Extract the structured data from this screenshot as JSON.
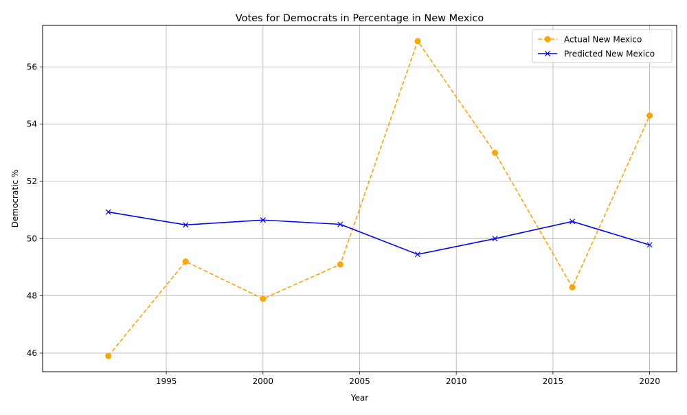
{
  "chart_data": {
    "type": "line",
    "title": "Votes for Democrats in Percentage in New Mexico",
    "xlabel": "Year",
    "ylabel": "Democratic %",
    "xlim": [
      1988.6,
      2021.4
    ],
    "ylim": [
      45.35,
      57.45
    ],
    "xticks": [
      1995,
      2000,
      2005,
      2010,
      2015,
      2020
    ],
    "yticks": [
      46,
      48,
      50,
      52,
      54,
      56
    ],
    "grid": true,
    "legend_position": "top-right",
    "x": [
      1992,
      1996,
      2000,
      2004,
      2008,
      2012,
      2016,
      2020
    ],
    "series": [
      {
        "name": "Actual New Mexico",
        "color": "#ffa500",
        "line_style": "dashed",
        "marker": "circle",
        "values": [
          45.9,
          49.2,
          47.9,
          49.1,
          56.9,
          53.0,
          48.3,
          54.3
        ]
      },
      {
        "name": "Predicted New Mexico",
        "color": "#0000ff",
        "line_style": "solid",
        "marker": "x",
        "values": [
          50.93,
          50.48,
          50.65,
          50.5,
          49.45,
          50.0,
          50.6,
          49.78
        ]
      }
    ]
  }
}
